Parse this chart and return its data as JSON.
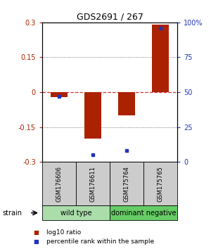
{
  "title": "GDS2691 / 267",
  "samples": [
    "GSM176606",
    "GSM176611",
    "GSM175764",
    "GSM175765"
  ],
  "log10_ratio": [
    -0.02,
    -0.2,
    -0.1,
    0.29
  ],
  "percentile_rank": [
    47,
    5,
    8,
    96
  ],
  "ylim_left": [
    -0.3,
    0.3
  ],
  "ylim_right": [
    0,
    100
  ],
  "yticks_left": [
    -0.3,
    -0.15,
    0,
    0.15,
    0.3
  ],
  "ytick_labels_left": [
    "-0.3",
    "-0.15",
    "0",
    "0.15",
    "0.3"
  ],
  "yticks_right": [
    0,
    25,
    50,
    75,
    100
  ],
  "ytick_labels_right": [
    "0",
    "25",
    "50",
    "75",
    "100%"
  ],
  "bar_color": "#aa2200",
  "dot_color": "#2233bb",
  "zero_line_color": "#cc3333",
  "dotted_line_color": "#555555",
  "bg_color": "#ffffff",
  "groups": [
    {
      "label": "wild type",
      "indices": [
        0,
        1
      ],
      "color": "#aaddaa"
    },
    {
      "label": "dominant negative",
      "indices": [
        2,
        3
      ],
      "color": "#66cc66"
    }
  ],
  "sample_box_color": "#cccccc",
  "strain_label": "strain",
  "legend_items": [
    {
      "color": "#aa2200",
      "label": "log10 ratio"
    },
    {
      "color": "#2233bb",
      "label": "percentile rank within the sample"
    }
  ],
  "bar_width": 0.5,
  "title_fontsize": 9,
  "tick_fontsize": 7,
  "sample_fontsize": 6,
  "group_fontsize": 7,
  "legend_fontsize": 6.5
}
